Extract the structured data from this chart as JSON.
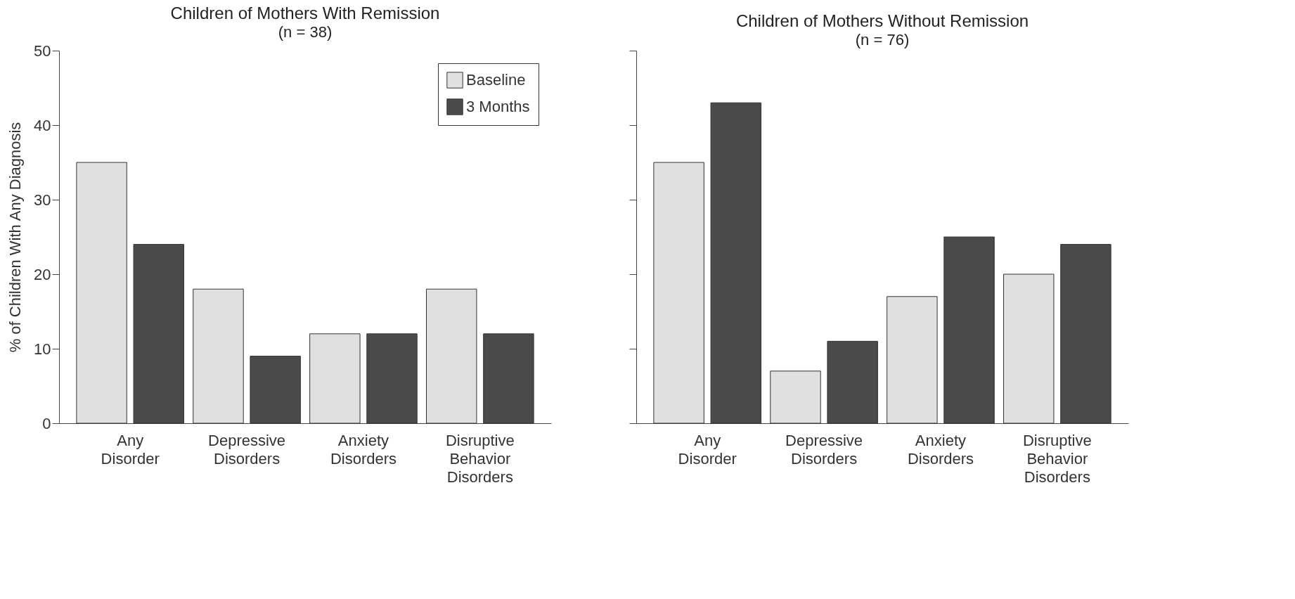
{
  "chart_data": [
    {
      "type": "bar",
      "title": "Children of Mothers With Remission",
      "subtitle": "(n = 38)",
      "ylabel": "% of Children With Any Diagnosis",
      "categories": [
        "Any Disorder",
        "Depressive Disorders",
        "Anxiety Disorders",
        "Disruptive Behavior Disorders"
      ],
      "series": [
        {
          "name": "Baseline",
          "color": "#e0e0e0",
          "values": [
            35,
            18,
            12,
            18
          ]
        },
        {
          "name": "3 Months",
          "color": "#4a4a4a",
          "values": [
            24,
            9,
            12,
            12
          ]
        }
      ],
      "ylim": [
        0,
        50
      ],
      "yticks": [
        0,
        10,
        20,
        30,
        40,
        50
      ],
      "legend": "top right"
    },
    {
      "type": "bar",
      "title": "Children of Mothers Without Remission",
      "subtitle": "(n = 76)",
      "categories": [
        "Any Disorder",
        "Depressive Disorders",
        "Anxiety Disorders",
        "Disruptive Behavior Disorders"
      ],
      "series": [
        {
          "name": "Baseline",
          "color": "#e0e0e0",
          "values": [
            35,
            7,
            17,
            20
          ]
        },
        {
          "name": "3 Months",
          "color": "#4a4a4a",
          "values": [
            43,
            11,
            25,
            24
          ]
        }
      ],
      "ylim": [
        0,
        50
      ],
      "yticks": [
        0,
        10,
        20,
        30,
        40,
        50
      ],
      "tick_labels": "x"
    }
  ]
}
